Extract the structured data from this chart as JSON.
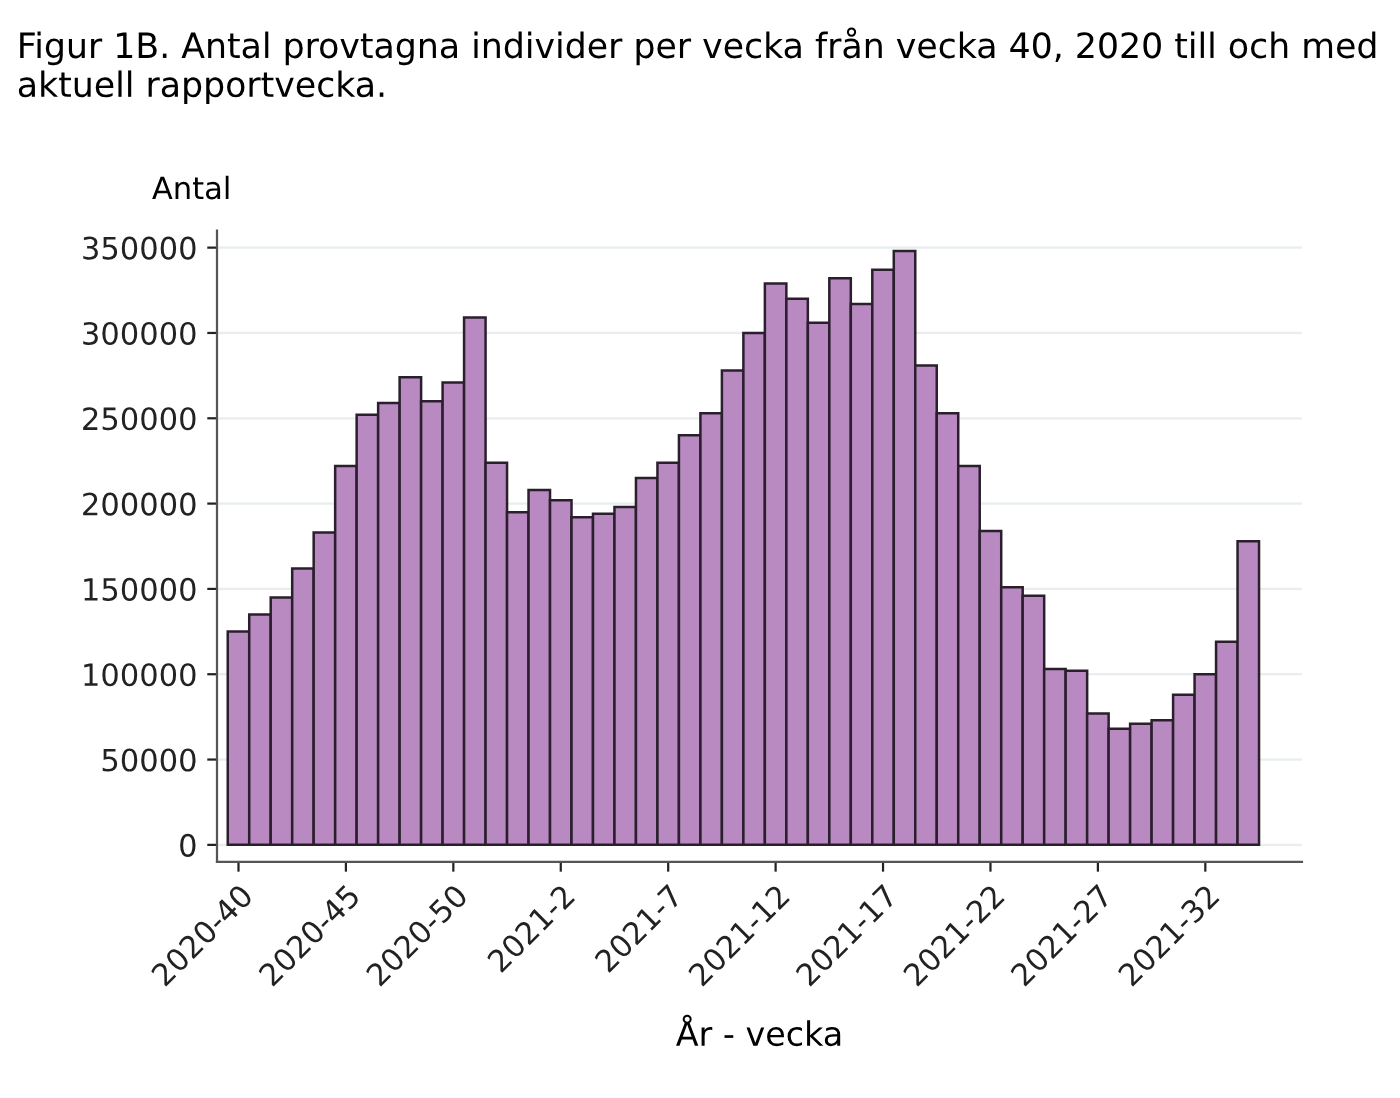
{
  "chart_data": {
    "type": "bar",
    "title": "Figur 1B. Antal provtagna individer per vecka från vecka 40, 2020 till och med aktuell rapportvecka.",
    "xlabel": "År - vecka",
    "ylabel": "Antal",
    "categories": [
      "2020-40",
      null,
      null,
      null,
      null,
      "2020-45",
      null,
      null,
      null,
      null,
      "2020-50",
      null,
      null,
      null,
      null,
      "2021-2",
      null,
      null,
      null,
      null,
      "2021-7",
      null,
      null,
      null,
      null,
      "2021-12",
      null,
      null,
      null,
      null,
      "2021-17",
      null,
      null,
      null,
      null,
      "2021-22",
      null,
      null,
      null,
      null,
      "2021-27",
      null,
      null,
      null,
      null,
      "2021-32",
      null,
      null
    ],
    "values": [
      125000,
      135000,
      145000,
      162000,
      183000,
      222000,
      252000,
      259000,
      274000,
      260000,
      271000,
      309000,
      224000,
      195000,
      208000,
      202000,
      192000,
      194000,
      198000,
      215000,
      224000,
      240000,
      253000,
      278000,
      300000,
      329000,
      320000,
      306000,
      332000,
      317000,
      337000,
      348000,
      281000,
      253000,
      222000,
      184000,
      151000,
      146000,
      103000,
      102000,
      77000,
      68000,
      71000,
      73000,
      88000,
      100000,
      119000,
      178000
    ],
    "color": "#b98ac1",
    "ylim": [
      -10000,
      360000
    ],
    "yticks": [
      0,
      50000,
      100000,
      150000,
      200000,
      250000,
      300000,
      350000
    ],
    "grid": "y"
  }
}
